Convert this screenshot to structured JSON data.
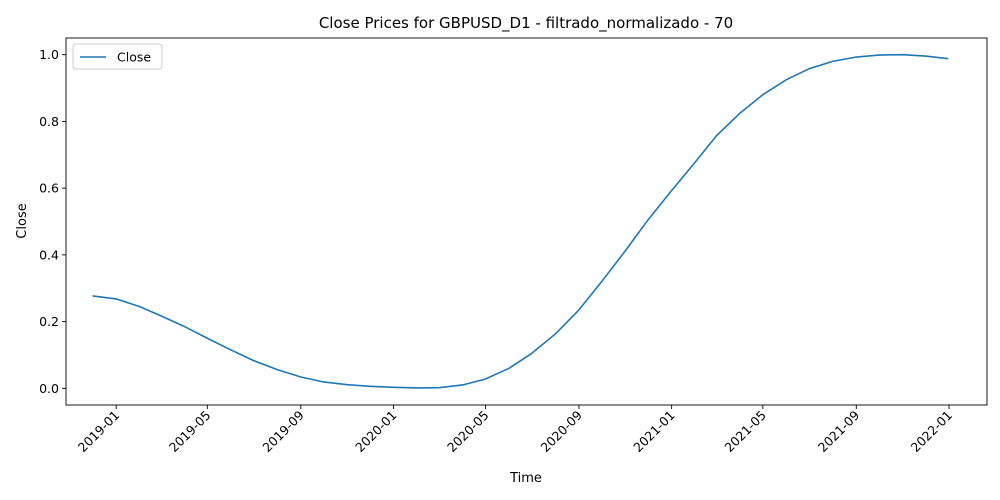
{
  "chart_data": {
    "type": "line",
    "title": "Close Prices for GBPUSD_D1 - filtrado_normalizado - 70",
    "xlabel": "Time",
    "ylabel": "Close",
    "x_ticks": [
      "2019-01",
      "2019-05",
      "2019-09",
      "2020-01",
      "2020-05",
      "2020-09",
      "2021-01",
      "2021-05",
      "2021-09",
      "2022-01"
    ],
    "y_ticks": [
      "0.0",
      "0.2",
      "0.4",
      "0.6",
      "0.8",
      "1.0"
    ],
    "xlim": [
      "2018-10-27",
      "2022-02-20"
    ],
    "ylim": [
      -0.05,
      1.05
    ],
    "grid": false,
    "legend_position": "top-left",
    "series": [
      {
        "name": "Close",
        "color": "#1f77b4",
        "x": [
          "2018-12-01",
          "2019-01-01",
          "2019-02-01",
          "2019-03-01",
          "2019-04-01",
          "2019-05-01",
          "2019-06-01",
          "2019-07-01",
          "2019-08-01",
          "2019-09-01",
          "2019-10-01",
          "2019-11-01",
          "2019-12-01",
          "2020-01-01",
          "2020-02-01",
          "2020-03-01",
          "2020-04-01",
          "2020-05-01",
          "2020-06-01",
          "2020-07-01",
          "2020-08-01",
          "2020-09-01",
          "2020-10-01",
          "2020-11-01",
          "2020-12-01",
          "2021-01-01",
          "2021-02-01",
          "2021-03-01",
          "2021-04-01",
          "2021-05-01",
          "2021-06-01",
          "2021-07-01",
          "2021-08-01",
          "2021-09-01",
          "2021-10-01",
          "2021-11-01",
          "2021-12-01",
          "2021-12-31"
        ],
        "y": [
          0.277,
          0.268,
          0.245,
          0.217,
          0.185,
          0.15,
          0.115,
          0.083,
          0.056,
          0.034,
          0.019,
          0.011,
          0.006,
          0.003,
          0.001,
          0.002,
          0.01,
          0.028,
          0.06,
          0.105,
          0.163,
          0.235,
          0.32,
          0.412,
          0.505,
          0.593,
          0.678,
          0.757,
          0.825,
          0.88,
          0.925,
          0.958,
          0.98,
          0.993,
          0.999,
          1.0,
          0.996,
          0.988
        ]
      }
    ]
  }
}
